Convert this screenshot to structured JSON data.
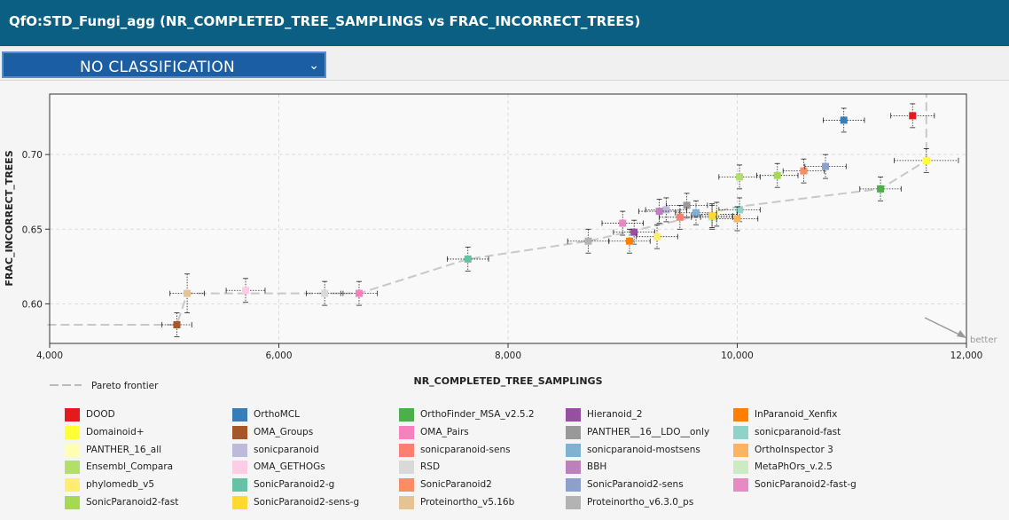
{
  "header": {
    "title": "QfO:STD_Fungi_agg (NR_COMPLETED_TREE_SAMPLINGS vs FRAC_INCORRECT_TREES)"
  },
  "classification": {
    "selected": "NO CLASSIFICATION"
  },
  "chart_data": {
    "type": "scatter",
    "xlabel": "NR_COMPLETED_TREE_SAMPLINGS",
    "ylabel": "FRAC_INCORRECT_TREES",
    "xlim": [
      4000,
      12000
    ],
    "ylim": [
      0.5735,
      0.7405
    ],
    "x_ticks": [
      4000,
      6000,
      8000,
      10000,
      12000
    ],
    "x_tick_labels": [
      "4,000",
      "6,000",
      "8,000",
      "10,000",
      "12,000"
    ],
    "y_ticks": [
      0.6,
      0.65,
      0.7
    ],
    "y_tick_labels": [
      "0.60",
      "0.65",
      "0.70"
    ],
    "grid": true,
    "better_label": "better",
    "pareto_label": "Pareto frontier",
    "pareto": [
      [
        3950,
        0.586
      ],
      [
        5110,
        0.586
      ],
      [
        5200,
        0.607
      ],
      [
        6700,
        0.607
      ],
      [
        7650,
        0.63
      ],
      [
        8700,
        0.642
      ],
      [
        10000,
        0.665
      ],
      [
        11250,
        0.677
      ],
      [
        11650,
        0.696
      ],
      [
        11650,
        0.7405
      ]
    ],
    "series": [
      {
        "name": "DOOD",
        "color": "#e41a1c",
        "x": 11530,
        "y": 0.726,
        "ex": 190,
        "ey": 0.008
      },
      {
        "name": "OrthoMCL",
        "color": "#377eb8",
        "x": 10930,
        "y": 0.723,
        "ex": 180,
        "ey": 0.008
      },
      {
        "name": "OrthoFinder_MSA_v2.5.2",
        "color": "#4daf4a",
        "x": 11250,
        "y": 0.677,
        "ex": 180,
        "ey": 0.008
      },
      {
        "name": "Hieranoid_2",
        "color": "#984ea3",
        "x": 9100,
        "y": 0.648,
        "ex": 180,
        "ey": 0.008
      },
      {
        "name": "InParanoid_Xenfix",
        "color": "#ff7f00",
        "x": 9060,
        "y": 0.642,
        "ex": 180,
        "ey": 0.008
      },
      {
        "name": "Domainoid+",
        "color": "#ffff33",
        "x": 11650,
        "y": 0.696,
        "ex": 280,
        "ey": 0.008
      },
      {
        "name": "OMA_Groups",
        "color": "#a65628",
        "x": 5110,
        "y": 0.586,
        "ex": 130,
        "ey": 0.008
      },
      {
        "name": "OMA_Pairs",
        "color": "#f781bf",
        "x": 6700,
        "y": 0.607,
        "ex": 160,
        "ey": 0.008
      },
      {
        "name": "PANTHER__16__LDO__only",
        "color": "#999999",
        "x": 9560,
        "y": 0.666,
        "ex": 180,
        "ey": 0.008
      },
      {
        "name": "sonicparanoid-fast",
        "color": "#8dd3c7",
        "x": 10020,
        "y": 0.663,
        "ex": 180,
        "ey": 0.008
      },
      {
        "name": "PANTHER_16_all",
        "color": "#ffffb3",
        "x": 9820,
        "y": 0.66,
        "ex": 180,
        "ey": 0.008
      },
      {
        "name": "sonicparanoid",
        "color": "#bebada",
        "x": 9380,
        "y": 0.663,
        "ex": 180,
        "ey": 0.008
      },
      {
        "name": "sonicparanoid-sens",
        "color": "#fb8072",
        "x": 9500,
        "y": 0.658,
        "ex": 180,
        "ey": 0.008
      },
      {
        "name": "sonicparanoid-mostsens",
        "color": "#80b1d3",
        "x": 9640,
        "y": 0.661,
        "ex": 180,
        "ey": 0.008
      },
      {
        "name": "OrthoInspector 3",
        "color": "#fdb462",
        "x": 10000,
        "y": 0.657,
        "ex": 180,
        "ey": 0.008
      },
      {
        "name": "Ensembl_Compara",
        "color": "#b3de69",
        "x": 10020,
        "y": 0.685,
        "ex": 180,
        "ey": 0.008
      },
      {
        "name": "OMA_GETHOGs",
        "color": "#fccde5",
        "x": 5710,
        "y": 0.609,
        "ex": 170,
        "ey": 0.008
      },
      {
        "name": "RSD",
        "color": "#d9d9d9",
        "x": 6400,
        "y": 0.607,
        "ex": 160,
        "ey": 0.008
      },
      {
        "name": "BBH",
        "color": "#bc80bd",
        "x": 9320,
        "y": 0.662,
        "ex": 180,
        "ey": 0.008
      },
      {
        "name": "MetaPhOrs_v.2.5",
        "color": "#ccebc5",
        "x": 9780,
        "y": 0.658,
        "ex": 180,
        "ey": 0.008
      },
      {
        "name": "phylomedb_v5",
        "color": "#ffed6f",
        "x": 9300,
        "y": 0.645,
        "ex": 180,
        "ey": 0.008
      },
      {
        "name": "SonicParanoid2-g",
        "color": "#66c2a5",
        "x": 7650,
        "y": 0.63,
        "ex": 180,
        "ey": 0.008
      },
      {
        "name": "SonicParanoid2",
        "color": "#fc8d62",
        "x": 10580,
        "y": 0.689,
        "ex": 180,
        "ey": 0.008
      },
      {
        "name": "SonicParanoid2-sens",
        "color": "#8da0cb",
        "x": 10770,
        "y": 0.692,
        "ex": 180,
        "ey": 0.008
      },
      {
        "name": "SonicParanoid2-fast-g",
        "color": "#e78ac3",
        "x": 9000,
        "y": 0.654,
        "ex": 180,
        "ey": 0.008
      },
      {
        "name": "SonicParanoid2-fast",
        "color": "#a6d854",
        "x": 10350,
        "y": 0.686,
        "ex": 180,
        "ey": 0.008
      },
      {
        "name": "SonicParanoid2-sens-g",
        "color": "#ffd92f",
        "x": 9780,
        "y": 0.659,
        "ex": 180,
        "ey": 0.008
      },
      {
        "name": "Proteinortho_v5.16b",
        "color": "#e5c494",
        "x": 5200,
        "y": 0.607,
        "ex": 150,
        "ey": 0.013
      },
      {
        "name": "Proteinortho_v6.3.0_ps",
        "color": "#b3b3b3",
        "x": 8700,
        "y": 0.642,
        "ex": 180,
        "ey": 0.008
      }
    ]
  }
}
